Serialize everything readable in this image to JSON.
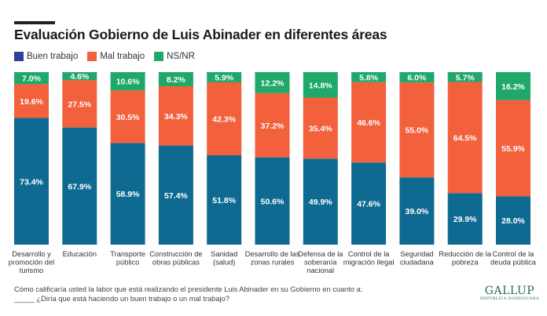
{
  "title": "Evaluación Gobierno de Luis Abinader en diferentes áreas",
  "colors": {
    "buen": "#0e6a91",
    "mal": "#f2603c",
    "nsnr": "#1fa86a",
    "legend_buen": "#2f3f9a"
  },
  "chart_data": {
    "type": "bar",
    "stacked": true,
    "title": "Evaluación Gobierno de Luis Abinader en diferentes áreas",
    "legend_position": "top-left",
    "categories": [
      "Desarrollo y\npromoción del\nturismo",
      "Educación",
      "Transporte\npúblico",
      "Construcción de\nobras públicas",
      "Sanidad\n(salud)",
      "Desarrollo de las\nzonas rurales",
      "Defensa de la\nsoberanía\nnacional",
      "Control de la\nmigración ilegal",
      "Seguridad\nciudadana",
      "Reducción de la\npobreza",
      "Control de la\ndeuda pública"
    ],
    "series": [
      {
        "name": "Buen trabajo",
        "values": [
          73.4,
          67.9,
          58.9,
          57.4,
          51.8,
          50.6,
          49.9,
          47.6,
          39.0,
          29.9,
          28.0
        ]
      },
      {
        "name": "Mal trabajo",
        "values": [
          19.6,
          27.5,
          30.5,
          34.3,
          42.3,
          37.2,
          35.4,
          46.6,
          55.0,
          64.5,
          55.9
        ]
      },
      {
        "name": "NS/NR",
        "values": [
          7.0,
          4.6,
          10.6,
          8.2,
          5.9,
          12.2,
          14.8,
          5.8,
          6.0,
          5.7,
          16.2
        ]
      }
    ],
    "value_labels": [
      [
        "73.4%",
        "67.9%",
        "58.9%",
        "57.4%",
        "51.8%",
        "50.6%",
        "49.9%",
        "47.6%",
        "39.0%",
        "29.9%",
        "28.0%"
      ],
      [
        "19.6%",
        "27.5%",
        "30.5%",
        "34.3%",
        "42.3%",
        "37.2%",
        "35.4%",
        "46.6%",
        "55.0%",
        "64.5%",
        "55.9%"
      ],
      [
        "7.0%",
        "4.6%",
        "10.6%",
        "8.2%",
        "5.9%",
        "12.2%",
        "14.8%",
        "5.8%",
        "6.0%",
        "5.7%",
        "16.2%"
      ]
    ],
    "ylim": [
      0,
      100
    ],
    "grid": false
  },
  "footnote": {
    "line1": "Cómo calificaría usted la labor que está realizando el presidente Luis Abinader en su Gobierno en cuanto a:",
    "line2": "_____ ¿Diría que está haciendo un buen trabajo o un mal trabajo?"
  },
  "logo": {
    "main": "GALLUP",
    "sub": "REPÚBLICA DOMINICANA"
  }
}
